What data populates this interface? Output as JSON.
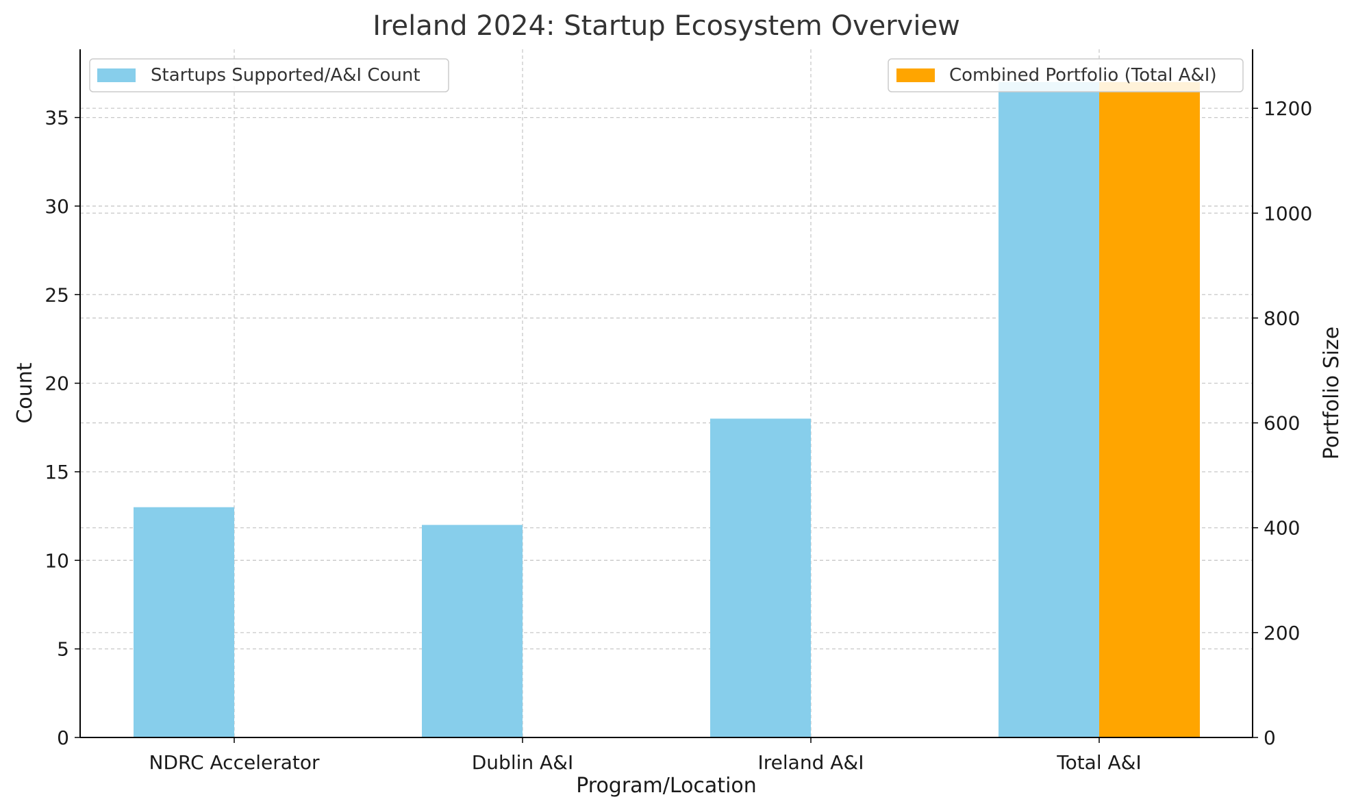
{
  "chart_data": {
    "type": "bar",
    "title": "Ireland 2024: Startup Ecosystem Overview",
    "xlabel": "Program/Location",
    "ylabel_left": "Count",
    "ylabel_right": "Portfolio Size",
    "categories": [
      "NDRC Accelerator",
      "Dublin A&I",
      "Ireland A&I",
      "Total A&I"
    ],
    "series": [
      {
        "name": "Startups Supported/A&I Count",
        "axis": "left",
        "color": "#87CEEB",
        "values": [
          13,
          12,
          18,
          37
        ]
      },
      {
        "name": "Combined Portfolio (Total A&I)",
        "axis": "right",
        "color": "#FFA500",
        "values": [
          0,
          0,
          0,
          1250
        ]
      }
    ],
    "ylim_left": [
      0,
      38.85
    ],
    "ylim_right": [
      0,
      1312.5
    ],
    "yticks_left": [
      0,
      5,
      10,
      15,
      20,
      25,
      30,
      35
    ],
    "yticks_right": [
      0,
      200,
      400,
      600,
      800,
      1000,
      1200
    ],
    "grid": true,
    "legend_left_placement": "top-left",
    "legend_right_placement": "top-right"
  }
}
